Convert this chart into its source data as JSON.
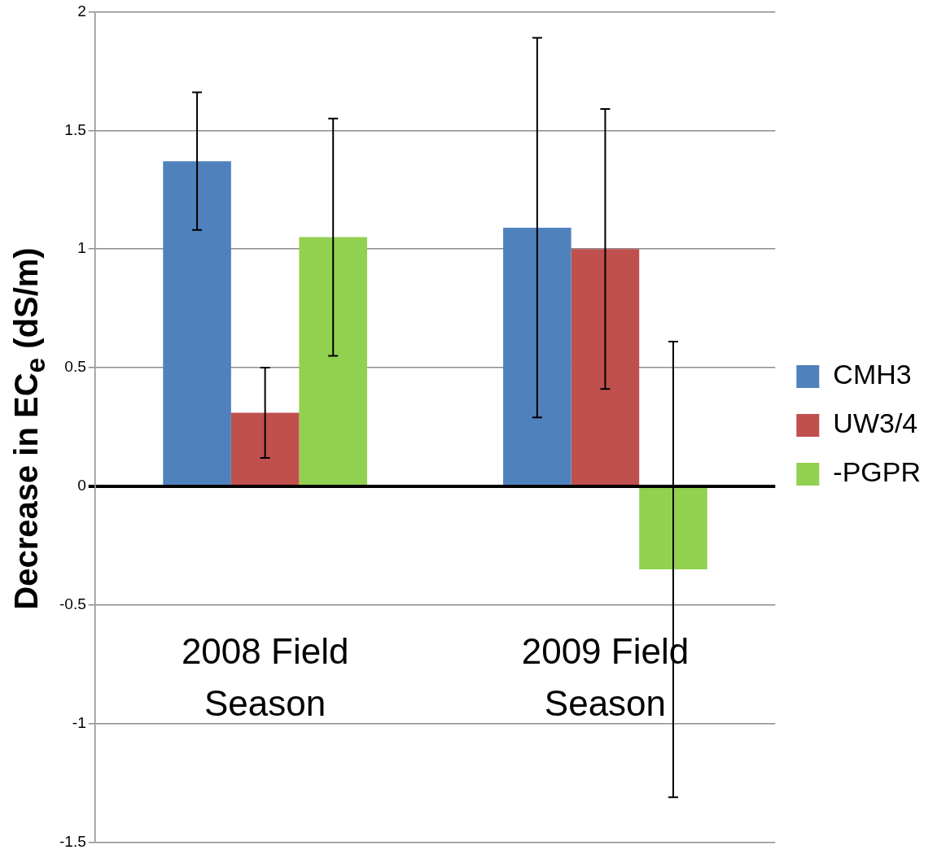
{
  "chart_data": {
    "type": "bar",
    "ylabel": "Decrease in EC$_{e}$ (dS/m)",
    "categories": [
      "2008 Field Season",
      "2009 Field Season"
    ],
    "series": [
      {
        "name": "CMH3",
        "color": "#4f81bd",
        "values": [
          1.37,
          1.09
        ],
        "errors": [
          0.29,
          0.8
        ]
      },
      {
        "name": "UW3/4",
        "color": "#c0504d",
        "values": [
          0.31,
          1.0
        ],
        "errors": [
          0.19,
          0.59
        ]
      },
      {
        "name": "-PGPR",
        "color": "#92d050",
        "values": [
          1.05,
          -0.35
        ],
        "errors": [
          0.5,
          0.96
        ]
      }
    ],
    "ylim": [
      -1.5,
      2
    ],
    "yticks": [
      -1.5,
      -1,
      -0.5,
      0,
      0.5,
      1,
      1.5,
      2
    ],
    "grid": "y",
    "legend": "right"
  }
}
